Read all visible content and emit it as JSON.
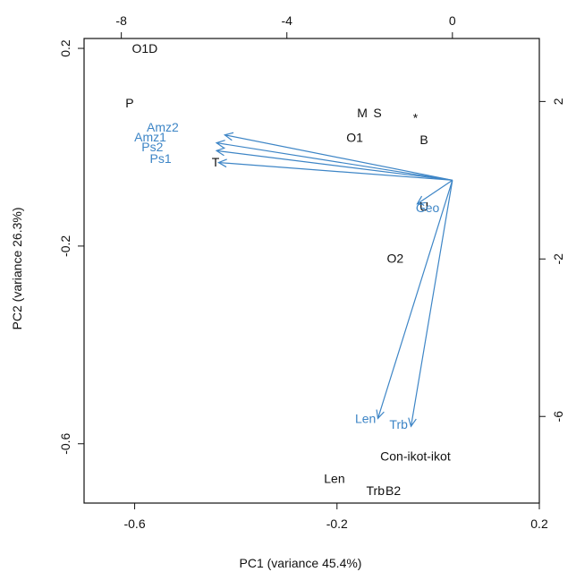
{
  "chart_data": {
    "type": "scatter",
    "title": "",
    "xlabel": "PC1 (variance 45.4%)",
    "ylabel": "PC2 (variance 26.3%)",
    "xlim": [
      -0.7,
      0.2
    ],
    "ylim": [
      -0.72,
      0.22
    ],
    "x_ticks": [
      -0.6,
      -0.2,
      0.2
    ],
    "y_ticks": [
      0.2,
      -0.2,
      -0.6
    ],
    "x_tick_labels": [
      "-0.6",
      "-0.2",
      "0.2"
    ],
    "y_tick_labels": [
      "0.2",
      "-0.2",
      "-0.6"
    ],
    "top_xlim": [
      -8.9,
      2.1
    ],
    "top_ticks": [
      -8,
      -4,
      0
    ],
    "top_tick_labels": [
      "-8",
      "-4",
      "0"
    ],
    "right_ylim": [
      3.6,
      -8.2
    ],
    "right_ticks": [
      2,
      -2,
      -6
    ],
    "right_tick_labels": [
      "2",
      "-2",
      "-6"
    ],
    "grid": false,
    "colors": {
      "observations": "#111111",
      "variables": "#3d85c6"
    },
    "observations": [
      {
        "label": "O1D",
        "x": -0.58,
        "y": 0.2
      },
      {
        "label": "P",
        "x": -0.61,
        "y": 0.09
      },
      {
        "label": "M",
        "x": -0.15,
        "y": 0.07
      },
      {
        "label": "S",
        "x": -0.12,
        "y": 0.07
      },
      {
        "label": "*",
        "x": -0.045,
        "y": 0.06
      },
      {
        "label": "O1",
        "x": -0.165,
        "y": 0.02
      },
      {
        "label": "B",
        "x": -0.028,
        "y": 0.015
      },
      {
        "label": "T",
        "x": -0.44,
        "y": -0.03
      },
      {
        "label": "U",
        "x": -0.028,
        "y": -0.12
      },
      {
        "label": "O2",
        "x": -0.085,
        "y": -0.225
      },
      {
        "label": "Con-ikot-ikot",
        "x": -0.045,
        "y": -0.625
      },
      {
        "label": "Len",
        "x": -0.205,
        "y": -0.67
      },
      {
        "label": "Trb",
        "x": -0.124,
        "y": -0.695
      },
      {
        "label": "B2",
        "x": -0.089,
        "y": -0.695
      }
    ],
    "variables": [
      {
        "label": "Amz2",
        "x": -7.0,
        "y": 1.35
      },
      {
        "label": "Amz1",
        "x": -7.3,
        "y": 1.1
      },
      {
        "label": "Ps2",
        "x": -7.25,
        "y": 0.85
      },
      {
        "label": "Ps1",
        "x": -7.05,
        "y": 0.55
      },
      {
        "label": "Geo",
        "x": -0.6,
        "y": -0.7
      },
      {
        "label": "Len",
        "x": -2.1,
        "y": -6.05
      },
      {
        "label": "Trb",
        "x": -1.3,
        "y": -6.2
      }
    ],
    "arrows": [
      {
        "to": [
          -5.5,
          1.15
        ]
      },
      {
        "to": [
          -5.7,
          0.95
        ]
      },
      {
        "to": [
          -5.7,
          0.75
        ]
      },
      {
        "to": [
          -5.65,
          0.45
        ]
      },
      {
        "to": [
          -0.85,
          -0.6
        ]
      },
      {
        "to": [
          -1.8,
          -6.05
        ]
      },
      {
        "to": [
          -1.0,
          -6.25
        ]
      }
    ]
  }
}
